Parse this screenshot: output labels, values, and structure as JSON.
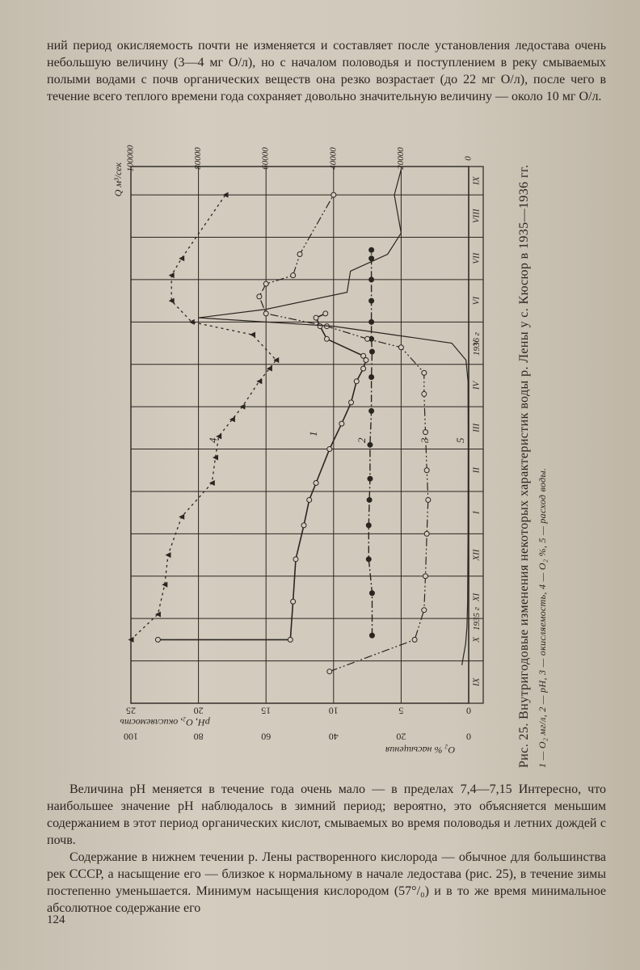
{
  "page": {
    "top_paragraph": "ний период окисляемость почти не изменяется и составляет после установления ледостава очень небольшую величину (3—4 мг О/л), но с началом половодья и поступлением в реку смываемых полыми водами с почв органических веществ она резко возрастает (до 22 мг О/л), после чего в течение всего теплого времени года сохраняет довольно значительную величину — около 10 мг О/л.",
    "bottom_paragraph_1": "Величина pH меняется в течение года очень мало — в пределах 7,4—7,15 Интересно, что наибольшее значение pH наблюдалось в зимний период; вероятно, это объясняется меньшим содержанием в этот период органических кислот, смываемых во время половодья и летних дождей с почв.",
    "bottom_paragraph_2": "Содержание в нижнем течении р. Лены растворенного кислорода — обычное для большинства рек СССР, а насыщение его — близкое к нормальному в начале ледостава (рис. 25), в течение зимы постепенно уменьшается. Минимум насыщения кислородом (57°/₀) и в то же время минимальное абсолютное содержание его",
    "page_number": "124"
  },
  "figure": {
    "caption_line1": "Рис. 25. Внутригодовые изменения некоторых характеристик воды р. Лены у с. Кюсюр в 1935—1936 гг.",
    "caption_line2": "1 — O₂ мг/л, 2 — pH, 3 — окисляемость, 4 — O₂ %, 5 — расход воды.",
    "axis_left_label": "pH, O₂, окисляемость",
    "axis_left_ticks": [
      "25",
      "20",
      "15",
      "10",
      "5",
      "0"
    ],
    "axis_sat_label": "O₂ % насыщения",
    "axis_sat_ticks": [
      "100",
      "80",
      "60",
      "40",
      "20",
      "0"
    ],
    "axis_q_label": "Q м³/сек",
    "axis_q_ticks": [
      "100000",
      "80000",
      "60000",
      "40000",
      "20000",
      "0"
    ],
    "months": [
      "IX",
      "X",
      "XI",
      "XII",
      "I",
      "II",
      "III",
      "IV",
      "V",
      "VI",
      "VII",
      "VIII",
      "IX"
    ],
    "year_1935": "1935 г",
    "year_1936": "1936 г",
    "curve_labels": [
      "1",
      "2",
      "3",
      "4",
      "5"
    ]
  },
  "chart_data": {
    "type": "line",
    "title": "Внутригодовые изменения некоторых характеристик воды р. Лены у с. Кюсюр в 1935—1936 гг.",
    "x_unit": "month",
    "categories": [
      "IX",
      "X",
      "XI",
      "XII",
      "I",
      "II",
      "III",
      "IV",
      "V",
      "VI",
      "VII",
      "VIII",
      "IX"
    ],
    "left_axis": {
      "label": "pH, O₂, окисляемость",
      "range": [
        0,
        25
      ]
    },
    "saturation_axis": {
      "label": "O₂ % насыщения",
      "range": [
        0,
        100
      ]
    },
    "discharge_axis": {
      "label": "Q м³/сек",
      "range": [
        0,
        100000
      ]
    },
    "series": [
      {
        "name": "1",
        "axis": "left",
        "points": [
          [
            1.5,
            23.0
          ],
          [
            1.5,
            13.2
          ],
          [
            2.4,
            13.0
          ],
          [
            3.4,
            12.8
          ],
          [
            4.2,
            12.2
          ],
          [
            4.8,
            11.8
          ],
          [
            5.2,
            11.3
          ],
          [
            6.0,
            10.3
          ],
          [
            6.6,
            9.4
          ],
          [
            7.1,
            8.7
          ],
          [
            7.6,
            8.3
          ],
          [
            7.9,
            7.8
          ],
          [
            8.1,
            7.6
          ],
          [
            8.2,
            7.8
          ],
          [
            8.6,
            10.5
          ],
          [
            8.9,
            11.0
          ],
          [
            9.1,
            11.3
          ],
          [
            9.2,
            10.6
          ]
        ]
      },
      {
        "name": "2",
        "axis": "left",
        "points": [
          [
            1.6,
            7.15
          ],
          [
            2.6,
            7.15
          ],
          [
            3.4,
            7.4
          ],
          [
            4.2,
            7.4
          ],
          [
            4.8,
            7.35
          ],
          [
            5.3,
            7.3
          ],
          [
            6.1,
            7.3
          ],
          [
            6.9,
            7.2
          ],
          [
            7.7,
            7.2
          ],
          [
            8.3,
            7.15
          ],
          [
            8.6,
            7.2
          ],
          [
            9.0,
            7.2
          ],
          [
            9.5,
            7.2
          ],
          [
            10.0,
            7.2
          ],
          [
            10.5,
            7.2
          ],
          [
            10.7,
            7.2
          ]
        ]
      },
      {
        "name": "3",
        "axis": "left",
        "points": [
          [
            0.75,
            10.3
          ],
          [
            1.5,
            4.0
          ],
          [
            2.2,
            3.3
          ],
          [
            3.0,
            3.2
          ],
          [
            4.0,
            3.1
          ],
          [
            4.8,
            3.0
          ],
          [
            5.5,
            3.1
          ],
          [
            6.4,
            3.2
          ],
          [
            7.3,
            3.3
          ],
          [
            7.8,
            3.3
          ],
          [
            8.4,
            5.0
          ],
          [
            8.6,
            7.5
          ],
          [
            8.9,
            10.5
          ],
          [
            9.2,
            15.0
          ],
          [
            9.6,
            15.5
          ],
          [
            9.9,
            15.0
          ],
          [
            10.1,
            13.0
          ],
          [
            10.6,
            12.5
          ],
          [
            12.0,
            10.0
          ]
        ]
      },
      {
        "name": "4",
        "axis": "saturation",
        "points": [
          [
            1.5,
            100
          ],
          [
            2.1,
            92
          ],
          [
            2.8,
            90
          ],
          [
            3.5,
            89
          ],
          [
            4.4,
            85
          ],
          [
            5.2,
            76
          ],
          [
            5.8,
            75
          ],
          [
            6.3,
            74
          ],
          [
            6.7,
            70
          ],
          [
            7.0,
            67
          ],
          [
            7.6,
            62
          ],
          [
            7.9,
            59
          ],
          [
            8.1,
            57
          ],
          [
            8.7,
            64
          ],
          [
            9.0,
            82
          ],
          [
            9.5,
            88
          ],
          [
            10.1,
            88
          ],
          [
            10.5,
            85
          ],
          [
            12.0,
            72
          ]
        ]
      },
      {
        "name": "5",
        "axis": "discharge",
        "points": [
          [
            0.9,
            2000
          ],
          [
            1.4,
            900
          ],
          [
            1.8,
            500
          ],
          [
            2.4,
            300
          ],
          [
            4.0,
            200
          ],
          [
            6.0,
            150
          ],
          [
            7.6,
            200
          ],
          [
            8.1,
            800
          ],
          [
            8.5,
            5000
          ],
          [
            8.9,
            40000
          ],
          [
            9.1,
            80000
          ],
          [
            9.3,
            60000
          ],
          [
            9.7,
            36000
          ],
          [
            10.2,
            35000
          ],
          [
            10.6,
            24000
          ],
          [
            11.1,
            20000
          ],
          [
            12.0,
            22000
          ],
          [
            12.6,
            20000
          ]
        ]
      }
    ],
    "annotations": [
      "1935 г",
      "1936 г"
    ]
  }
}
